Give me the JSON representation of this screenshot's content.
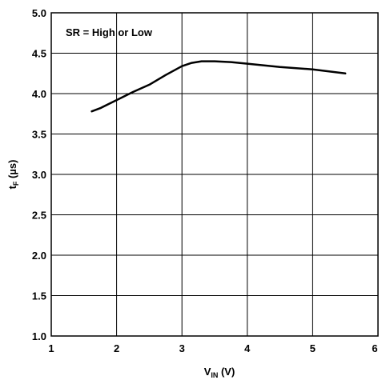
{
  "chart_data": {
    "type": "line",
    "title": "",
    "annotation": "SR = High or Low",
    "xlabel": {
      "main": "V",
      "sub": "IN",
      "unit": " (V)"
    },
    "ylabel": {
      "main": "t",
      "sub": "F",
      "unit": " (µs)"
    },
    "xlim": [
      1,
      6
    ],
    "ylim": [
      1.0,
      5.0
    ],
    "x_ticks": [
      1,
      2,
      3,
      4,
      5,
      6
    ],
    "x_tick_labels": [
      "1",
      "2",
      "3",
      "4",
      "5",
      "6"
    ],
    "y_ticks": [
      1.0,
      1.5,
      2.0,
      2.5,
      3.0,
      3.5,
      4.0,
      4.5,
      5.0
    ],
    "y_tick_labels": [
      "1.0",
      "1.5",
      "2.0",
      "2.5",
      "3.0",
      "3.5",
      "4.0",
      "4.5",
      "5.0"
    ],
    "grid": true,
    "series": [
      {
        "x": [
          1.62,
          1.75,
          2.0,
          2.25,
          2.5,
          2.75,
          3.0,
          3.15,
          3.3,
          3.5,
          3.75,
          4.0,
          4.5,
          5.0,
          5.5
        ],
        "y": [
          3.78,
          3.82,
          3.92,
          4.02,
          4.11,
          4.23,
          4.34,
          4.38,
          4.4,
          4.4,
          4.39,
          4.37,
          4.33,
          4.3,
          4.25
        ]
      }
    ],
    "line_color": "#000000",
    "grid_color": "#000000"
  }
}
